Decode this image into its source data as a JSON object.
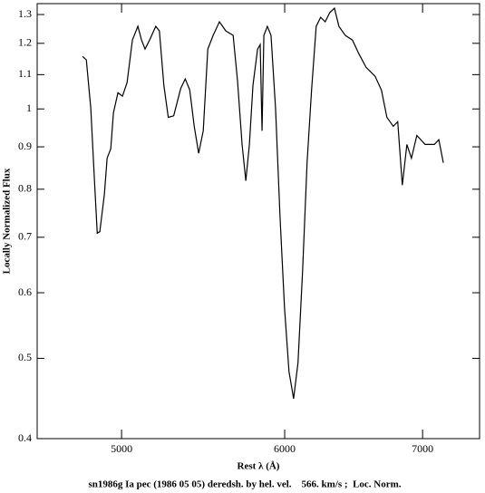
{
  "chart_data": {
    "type": "line",
    "title": "sn1986g Ia pec (1986 05 05) deredsh. by hel. vel.    566. km/s ;  Loc. Norm.",
    "xlabel": "Rest λ (Å)",
    "ylabel": "Locally Normalized Flux",
    "xscale": "log",
    "yscale": "log",
    "xlim": [
      4550,
      7460
    ],
    "ylim": [
      0.4,
      1.34
    ],
    "xticks": [
      5000,
      6000,
      7000
    ],
    "yticks": [
      0.4,
      0.5,
      0.6,
      0.7,
      0.8,
      0.9,
      1,
      1.1,
      1.2,
      1.3
    ],
    "color": "#000000",
    "x": [
      4787,
      4807,
      4831,
      4851,
      4866,
      4880,
      4905,
      4920,
      4940,
      4955,
      4980,
      5005,
      5031,
      5061,
      5092,
      5113,
      5133,
      5159,
      5195,
      5216,
      5242,
      5268,
      5300,
      5342,
      5369,
      5396,
      5423,
      5450,
      5478,
      5506,
      5539,
      5578,
      5618,
      5664,
      5692,
      5721,
      5745,
      5768,
      5791,
      5821,
      5838,
      5850,
      5862,
      5885,
      5909,
      5939,
      5969,
      5999,
      6029,
      6060,
      6090,
      6121,
      6152,
      6183,
      6215,
      6246,
      6278,
      6310,
      6343,
      6375,
      6420,
      6472,
      6518,
      6571,
      6638,
      6685,
      6726,
      6774,
      6808,
      6843,
      6878,
      6913,
      6955,
      7020,
      7092,
      7128,
      7164
    ],
    "values": [
      1.157,
      1.146,
      1.002,
      0.819,
      0.708,
      0.711,
      0.789,
      0.872,
      0.895,
      0.99,
      1.046,
      1.036,
      1.076,
      1.211,
      1.258,
      1.211,
      1.181,
      1.211,
      1.258,
      1.242,
      1.068,
      0.977,
      0.981,
      1.059,
      1.087,
      1.054,
      0.953,
      0.884,
      0.941,
      1.181,
      1.227,
      1.274,
      1.242,
      1.227,
      1.081,
      0.906,
      0.819,
      0.906,
      1.068,
      1.181,
      1.196,
      0.941,
      1.227,
      1.258,
      1.227,
      1.002,
      0.74,
      0.575,
      0.482,
      0.447,
      0.494,
      0.636,
      0.861,
      1.054,
      1.258,
      1.29,
      1.274,
      1.307,
      1.323,
      1.258,
      1.227,
      1.211,
      1.166,
      1.123,
      1.095,
      1.054,
      0.977,
      0.953,
      0.965,
      0.809,
      0.906,
      0.872,
      0.929,
      0.906,
      0.906,
      0.918,
      0.861
    ]
  }
}
